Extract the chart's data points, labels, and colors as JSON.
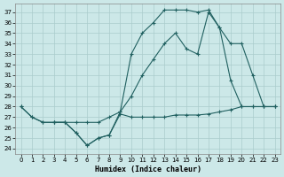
{
  "xlabel": "Humidex (Indice chaleur)",
  "xlim": [
    -0.5,
    23.5
  ],
  "ylim": [
    23.5,
    37.8
  ],
  "yticks": [
    24,
    25,
    26,
    27,
    28,
    29,
    30,
    31,
    32,
    33,
    34,
    35,
    36,
    37
  ],
  "xticks": [
    0,
    1,
    2,
    3,
    4,
    5,
    6,
    7,
    8,
    9,
    10,
    11,
    12,
    13,
    14,
    15,
    16,
    17,
    18,
    19,
    20,
    21,
    22,
    23
  ],
  "bg_color": "#cce8e8",
  "grid_color": "#aacccc",
  "line_color": "#206060",
  "line1_x": [
    0,
    1,
    2,
    3,
    4,
    5,
    6,
    7,
    8,
    9,
    10,
    11,
    12,
    13,
    14,
    15,
    16,
    17,
    18,
    19,
    20,
    21,
    22,
    23
  ],
  "line1_y": [
    28.0,
    27.0,
    26.5,
    26.5,
    26.5,
    25.5,
    24.3,
    25.0,
    25.3,
    27.3,
    27.0,
    27.0,
    27.0,
    27.0,
    27.2,
    27.2,
    27.2,
    27.3,
    27.5,
    27.7,
    28.0,
    28.0,
    28.0,
    28.0
  ],
  "line2_x": [
    0,
    1,
    2,
    3,
    4,
    5,
    6,
    7,
    8,
    9,
    10,
    11,
    12,
    13,
    14,
    15,
    16,
    17,
    18,
    19,
    20,
    21,
    22,
    23
  ],
  "line2_y": [
    28.0,
    27.0,
    26.5,
    26.5,
    26.5,
    25.5,
    24.3,
    25.0,
    25.3,
    27.5,
    33.0,
    35.0,
    36.0,
    37.2,
    37.2,
    37.2,
    37.0,
    37.2,
    35.5,
    30.5,
    28.0,
    28.0,
    28.0,
    28.0
  ],
  "line3_x": [
    3,
    4,
    5,
    6,
    7,
    8,
    9,
    10,
    11,
    12,
    13,
    14,
    15,
    16,
    17,
    18,
    19,
    20,
    21,
    22,
    23
  ],
  "line3_y": [
    26.5,
    26.5,
    26.5,
    26.5,
    26.5,
    27.0,
    27.5,
    29.0,
    31.0,
    32.5,
    34.0,
    35.0,
    33.5,
    33.0,
    37.0,
    35.5,
    34.0,
    34.0,
    31.0,
    28.0,
    28.0
  ]
}
